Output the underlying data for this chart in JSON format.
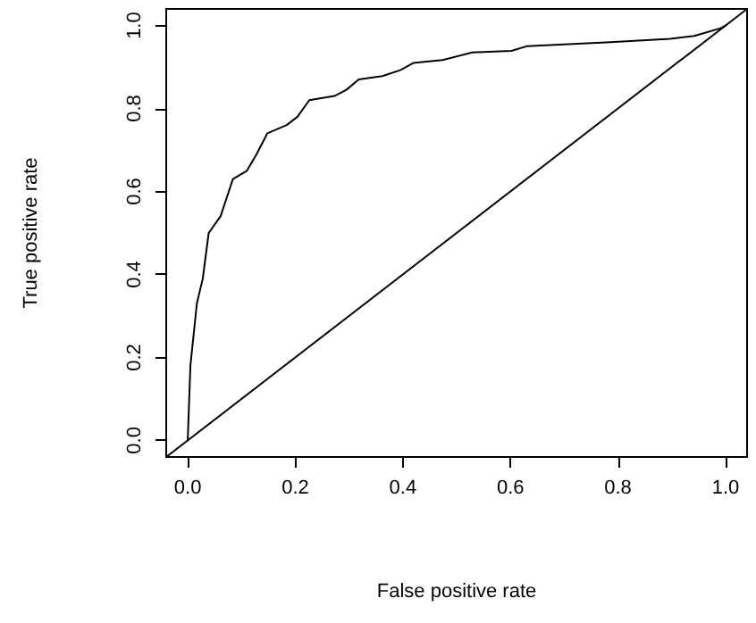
{
  "chart_data": {
    "type": "line",
    "xlabel": "False positive rate",
    "ylabel": "True positive rate",
    "xlim": [
      -0.04,
      1.04
    ],
    "ylim": [
      -0.04,
      1.04
    ],
    "xticks": [
      {
        "value": 0,
        "label": "0.0"
      },
      {
        "value": 0.2,
        "label": "0.2"
      },
      {
        "value": 0.4,
        "label": "0.4"
      },
      {
        "value": 0.6,
        "label": "0.6"
      },
      {
        "value": 0.8,
        "label": "0.8"
      },
      {
        "value": 1,
        "label": "1.0"
      }
    ],
    "yticks": [
      {
        "value": 0,
        "label": "0.0"
      },
      {
        "value": 0.2,
        "label": "0.2"
      },
      {
        "value": 0.4,
        "label": "0.4"
      },
      {
        "value": 0.6,
        "label": "0.6"
      },
      {
        "value": 0.8,
        "label": "0.8"
      },
      {
        "value": 1,
        "label": "1.0"
      }
    ],
    "grid": false,
    "marker": "none",
    "line_style": "solid",
    "series": [
      {
        "color": "#000000",
        "x": [
          0,
          0.005,
          0.017,
          0.028,
          0.039,
          0.061,
          0.084,
          0.11,
          0.128,
          0.148,
          0.184,
          0.204,
          0.226,
          0.273,
          0.295,
          0.318,
          0.362,
          0.396,
          0.42,
          0.474,
          0.529,
          0.602,
          0.63,
          0.786,
          0.897,
          0.942,
          0.992,
          1
        ],
        "values": [
          0,
          0.18,
          0.33,
          0.39,
          0.5,
          0.54,
          0.63,
          0.65,
          0.69,
          0.74,
          0.76,
          0.78,
          0.82,
          0.83,
          0.845,
          0.87,
          0.878,
          0.893,
          0.91,
          0.917,
          0.935,
          0.939,
          0.95,
          0.96,
          0.968,
          0.975,
          0.994,
          1
        ]
      },
      {
        "color": "#000000",
        "x": [
          -0.04,
          1.04
        ],
        "values": [
          -0.04,
          1.04
        ]
      }
    ]
  }
}
